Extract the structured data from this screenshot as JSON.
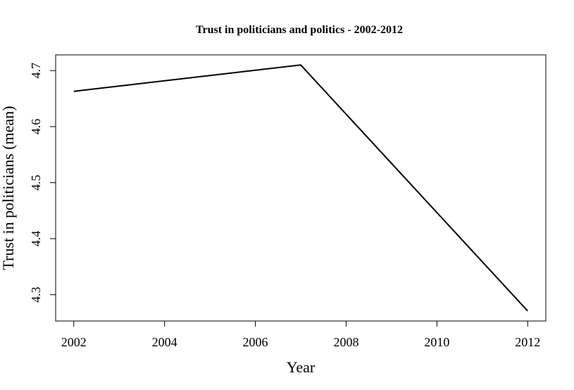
{
  "chart_data": {
    "type": "line",
    "title": "Trust in politicians and politics - 2002-2012",
    "xlabel": "Year",
    "ylabel": "Trust in politicians (mean)",
    "x": [
      2002,
      2007,
      2012
    ],
    "series": [
      {
        "values": [
          4.663,
          4.71,
          4.271
        ]
      }
    ],
    "xticks": [
      2002,
      2004,
      2006,
      2008,
      2010,
      2012
    ],
    "xtick_labels": [
      "2002",
      "2004",
      "2006",
      "2008",
      "2010",
      "2012"
    ],
    "yticks": [
      4.3,
      4.4,
      4.5,
      4.6,
      4.7
    ],
    "ytick_labels": [
      "4.3",
      "4.4",
      "4.5",
      "4.6",
      "4.7"
    ],
    "xlim": [
      2001.6,
      2012.4
    ],
    "ylim": [
      4.253,
      4.728
    ],
    "grid": false,
    "line_color": "#000000"
  }
}
